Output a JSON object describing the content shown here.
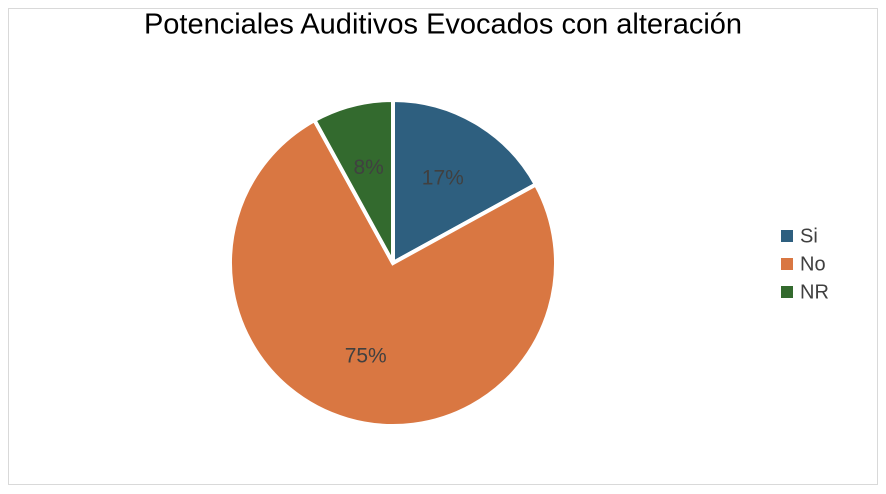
{
  "chart_data": {
    "type": "pie",
    "title": "Potenciales Auditivos Evocados con alteración",
    "categories": [
      "Si",
      "No",
      "NR"
    ],
    "values": [
      17,
      75,
      8
    ],
    "value_labels": [
      "17%",
      "75%",
      "8%"
    ],
    "colors": [
      "#2e5f7f",
      "#d97742",
      "#336a2e"
    ],
    "legend": "right"
  }
}
